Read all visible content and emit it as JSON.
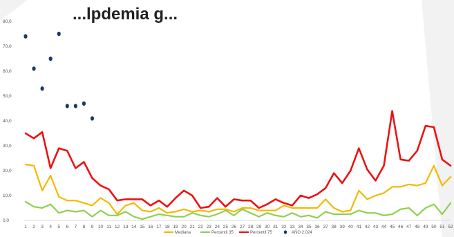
{
  "chart_data": {
    "type": "line",
    "title": "...lpdemia g...",
    "xlabel": "",
    "ylabel": "",
    "ylim": [
      0,
      80
    ],
    "yticks": [
      "0,0",
      "10,0",
      "20,0",
      "30,0",
      "40,0",
      "50,0",
      "60,0",
      "70,0",
      "80,0"
    ],
    "categories": [
      "1",
      "2",
      "3",
      "4",
      "5",
      "6",
      "7",
      "8",
      "9",
      "10",
      "11",
      "12",
      "13",
      "14",
      "15",
      "16",
      "17",
      "18",
      "19",
      "20",
      "21",
      "22",
      "23",
      "24",
      "25",
      "26",
      "27",
      "28",
      "29",
      "30",
      "31",
      "32",
      "33",
      "34",
      "35",
      "36",
      "37",
      "38",
      "39",
      "40",
      "41",
      "42",
      "43",
      "44",
      "45",
      "46",
      "47",
      "48",
      "49",
      "50",
      "51",
      "52"
    ],
    "series": [
      {
        "name": "Mediana",
        "color": "#f5b800",
        "kind": "line",
        "values": [
          22.5,
          22,
          12,
          18,
          9.5,
          8,
          8,
          7,
          6,
          9,
          7,
          2.5,
          6,
          7,
          4,
          3.5,
          5,
          3,
          3.5,
          4.5,
          3.5,
          4,
          3.5,
          4.5,
          4.5,
          3.5,
          5,
          5,
          4,
          4,
          4,
          6,
          5,
          5,
          5,
          5,
          8.5,
          5,
          3.5,
          4,
          12,
          8.5,
          10,
          11,
          13.5,
          13.5,
          14.5,
          14,
          15,
          22,
          14,
          17.5
        ]
      },
      {
        "name": "Percentil 35",
        "color": "#8fd04e",
        "kind": "line",
        "values": [
          7.5,
          5.5,
          5,
          6.5,
          3,
          4,
          3.5,
          4,
          1.5,
          4,
          2,
          2,
          3.5,
          1.5,
          0.5,
          1.5,
          2.5,
          2,
          1.5,
          1.5,
          3,
          2,
          1.5,
          2.5,
          4,
          2,
          4.5,
          3,
          1.5,
          3,
          2,
          1.5,
          3,
          1.5,
          2,
          1,
          3.5,
          2.5,
          2.5,
          2.5,
          4,
          3,
          3,
          2,
          2.5,
          4.5,
          5,
          2,
          5,
          6.5,
          2.5,
          7
        ]
      },
      {
        "name": "Percentil 75",
        "color": "#ee1111",
        "kind": "line",
        "values": [
          35,
          33,
          35.5,
          21,
          29,
          28,
          21,
          23.5,
          17,
          14,
          12.5,
          8,
          8.5,
          8.5,
          8.5,
          6,
          8,
          5.5,
          9,
          12,
          10,
          5,
          5.5,
          9,
          5.5,
          8.5,
          8,
          8,
          5,
          6.5,
          8.5,
          7,
          6,
          10,
          9,
          10.5,
          13,
          19,
          15,
          20,
          29,
          20.5,
          16,
          22,
          44,
          24.5,
          24,
          28,
          38,
          37.5,
          24.5,
          22
        ]
      },
      {
        "name": "AÑO 2.024",
        "color": "#1f3864",
        "kind": "scatter",
        "values": [
          74,
          61,
          53,
          65,
          75,
          46,
          46,
          47,
          41
        ]
      }
    ],
    "legend_position": "bottom",
    "grid": false
  }
}
